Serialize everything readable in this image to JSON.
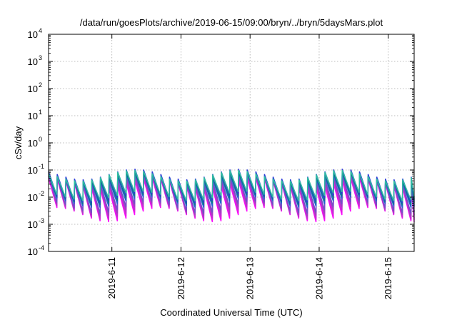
{
  "chart_data": {
    "type": "line",
    "title": "/data/run/goesPlots/archive/2019-06-15/09:00/bryn/../bryn/5daysMars.plot",
    "xlabel": "Coordinated Universal Time (UTC)",
    "ylabel": "cSv/day",
    "yscale": "log",
    "ylim": [
      0.0001,
      10000
    ],
    "xlim": [
      "2019-06-10T02:00",
      "2019-06-15T09:00"
    ],
    "grid": true,
    "legend": "none",
    "x_ticks": [
      {
        "date": "2019-06-11",
        "label": "2019-6-11"
      },
      {
        "date": "2019-06-12",
        "label": "2019-6-12"
      },
      {
        "date": "2019-06-13",
        "label": "2019-6-13"
      },
      {
        "date": "2019-06-14",
        "label": "2019-6-14"
      },
      {
        "date": "2019-06-15",
        "label": "2019-6-15"
      }
    ],
    "y_ticks": [
      {
        "value": 0.0001,
        "base": "10",
        "exp": "-4"
      },
      {
        "value": 0.001,
        "base": "10",
        "exp": "-3"
      },
      {
        "value": 0.01,
        "base": "10",
        "exp": "-2"
      },
      {
        "value": 0.1,
        "base": "10",
        "exp": "-1"
      },
      {
        "value": 1,
        "base": "10",
        "exp": "0"
      },
      {
        "value": 10,
        "base": "10",
        "exp": "1"
      },
      {
        "value": 100,
        "base": "10",
        "exp": "2"
      },
      {
        "value": 1000,
        "base": "10",
        "exp": "3"
      },
      {
        "value": 10000,
        "base": "10",
        "exp": "4"
      }
    ],
    "pattern": {
      "shape": "sawtooth",
      "period_hours": 3,
      "first_peak": "2019-06-10T02:00",
      "envelope_period_hours": 36
    },
    "series": [
      {
        "color": "#ff00ff",
        "peak_hi": 0.05,
        "peak_lo": 0.02,
        "trough_hi": 0.004,
        "trough_lo": 0.0012
      },
      {
        "color": "#e020e0",
        "peak_hi": 0.055,
        "peak_lo": 0.022,
        "trough_hi": 0.0045,
        "trough_lo": 0.0014
      },
      {
        "color": "#c030d0",
        "peak_hi": 0.06,
        "peak_lo": 0.025,
        "trough_hi": 0.005,
        "trough_lo": 0.0016
      },
      {
        "color": "#a040c0",
        "peak_hi": 0.065,
        "peak_lo": 0.028,
        "trough_hi": 0.006,
        "trough_lo": 0.002
      },
      {
        "color": "#7050c8",
        "peak_hi": 0.07,
        "peak_lo": 0.03,
        "trough_hi": 0.007,
        "trough_lo": 0.0025
      },
      {
        "color": "#2060d0",
        "peak_hi": 0.08,
        "peak_lo": 0.035,
        "trough_hi": 0.01,
        "trough_lo": 0.004
      },
      {
        "color": "#0a7a8a",
        "peak_hi": 0.085,
        "peak_lo": 0.038,
        "trough_hi": 0.012,
        "trough_lo": 0.005
      },
      {
        "color": "#2a3ad8",
        "peak_hi": 0.11,
        "peak_lo": 0.045,
        "trough_hi": 0.014,
        "trough_lo": 0.006
      },
      {
        "color": "#30c0a0",
        "peak_hi": 0.1,
        "peak_lo": 0.04,
        "trough_hi": 0.016,
        "trough_lo": 0.007
      }
    ]
  }
}
